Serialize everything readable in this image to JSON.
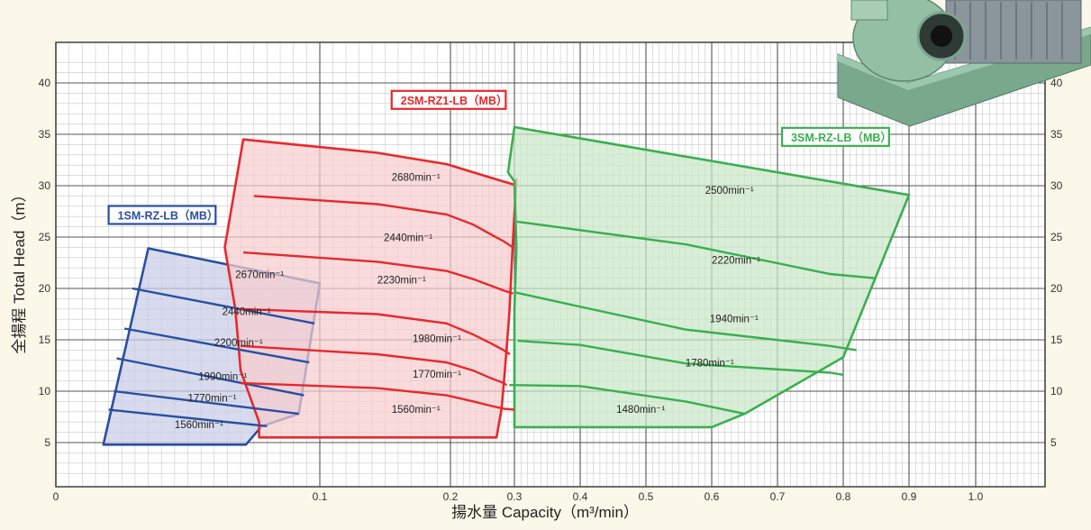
{
  "chart_data": {
    "type": "area",
    "xlabel": "揚水量 Capacity（m³/min）",
    "ylabel": "全揚程 Total Head（m）",
    "x_ticks": [
      "0",
      "0.1",
      "0.2",
      "0.3",
      "0.4",
      "0.5",
      "0.6",
      "0.7",
      "0.8",
      "0.9",
      "1.0"
    ],
    "x_tick_values": [
      0,
      0.1,
      0.2,
      0.3,
      0.4,
      0.5,
      0.6,
      0.7,
      0.8,
      0.9,
      1.0
    ],
    "y_ticks": [
      "5",
      "10",
      "15",
      "20",
      "25",
      "30",
      "35",
      "40"
    ],
    "y_tick_values": [
      5,
      10,
      15,
      20,
      25,
      30,
      35,
      40
    ],
    "ylim": [
      2,
      42
    ],
    "grid": true,
    "series": [
      {
        "name": "1SM-RZ-LB（MB）",
        "color": "#2a4fa0",
        "fill": "#c7cde6",
        "legend_anchor": [
          0.02,
          26.8
        ],
        "outline": [
          [
            0.018,
            4.8
          ],
          [
            0.035,
            23.9
          ],
          [
            0.1,
            20.5
          ],
          [
            0.092,
            7.8
          ],
          [
            0.078,
            6.6
          ],
          [
            0.072,
            4.8
          ]
        ],
        "curves": [
          {
            "label": "2670min⁻¹",
            "points": [
              [
                0.029,
                20.0
              ],
              [
                0.098,
                16.6
              ]
            ]
          },
          {
            "label": "2440min⁻¹",
            "points": [
              [
                0.026,
                16.1
              ],
              [
                0.096,
                12.8
              ]
            ]
          },
          {
            "label": "2200min⁻¹",
            "points": [
              [
                0.023,
                13.2
              ],
              [
                0.094,
                9.6
              ]
            ]
          },
          {
            "label": "1990min⁻¹",
            "points": [
              [
                0.022,
                10.0
              ],
              [
                0.092,
                7.8
              ]
            ]
          },
          {
            "label": "1770min⁻¹",
            "points": [
              [
                0.02,
                8.2
              ],
              [
                0.08,
                6.6
              ]
            ]
          }
        ],
        "speed_labels": [
          {
            "text": "2670min⁻¹",
            "at": [
              0.068,
              21.0
            ]
          },
          {
            "text": "2440min⁻¹",
            "at": [
              0.063,
              17.4
            ]
          },
          {
            "text": "2200min⁻¹",
            "at": [
              0.06,
              14.4
            ]
          },
          {
            "text": "1990min⁻¹",
            "at": [
              0.054,
              11.1
            ]
          },
          {
            "text": "1770min⁻¹",
            "at": [
              0.05,
              9.0
            ]
          },
          {
            "text": "1560min⁻¹",
            "at": [
              0.045,
              6.4
            ]
          }
        ]
      },
      {
        "name": "2SM-RZ1-LB（MB）",
        "color": "#e8282d",
        "fill": "#f7cdcf",
        "legend_anchor": [
          0.155,
          38.0
        ],
        "outline": [
          [
            0.071,
            34.5
          ],
          [
            0.144,
            33.2
          ],
          [
            0.197,
            32.1
          ],
          [
            0.236,
            31.3
          ],
          [
            0.262,
            30.8
          ],
          [
            0.283,
            30.4
          ],
          [
            0.3,
            30.1
          ],
          [
            0.303,
            30.6
          ],
          [
            0.298,
            25.0
          ],
          [
            0.292,
            17.5
          ],
          [
            0.285,
            12.0
          ],
          [
            0.28,
            8.3
          ],
          [
            0.272,
            5.5
          ],
          [
            0.265,
            5.5
          ],
          [
            0.234,
            5.5
          ],
          [
            0.196,
            5.5
          ],
          [
            0.144,
            5.5
          ],
          [
            0.107,
            5.5
          ],
          [
            0.085,
            5.5
          ],
          [
            0.077,
            5.5
          ],
          [
            0.077,
            7.0
          ],
          [
            0.07,
            12.0
          ],
          [
            0.068,
            18.0
          ],
          [
            0.064,
            24.0
          ],
          [
            0.071,
            34.5
          ]
        ],
        "curves": [
          {
            "label": "2440min⁻¹",
            "points": [
              [
                0.075,
                29.0
              ],
              [
                0.144,
                28.2
              ],
              [
                0.197,
                27.2
              ],
              [
                0.236,
                26.2
              ],
              [
                0.262,
                25.3
              ],
              [
                0.283,
                24.6
              ],
              [
                0.3,
                23.9
              ]
            ]
          },
          {
            "label": "2230min⁻¹",
            "points": [
              [
                0.071,
                23.5
              ],
              [
                0.144,
                22.6
              ],
              [
                0.197,
                21.7
              ],
              [
                0.236,
                20.9
              ],
              [
                0.262,
                20.3
              ],
              [
                0.283,
                19.8
              ],
              [
                0.298,
                19.5
              ]
            ]
          },
          {
            "label": "1980min⁻¹",
            "points": [
              [
                0.07,
                18.0
              ],
              [
                0.144,
                17.5
              ],
              [
                0.197,
                16.6
              ],
              [
                0.236,
                15.5
              ],
              [
                0.262,
                14.7
              ],
              [
                0.283,
                14.0
              ],
              [
                0.293,
                13.6
              ]
            ]
          },
          {
            "label": "1770min⁻¹",
            "points": [
              [
                0.07,
                14.4
              ],
              [
                0.144,
                13.6
              ],
              [
                0.197,
                12.8
              ],
              [
                0.236,
                12.0
              ],
              [
                0.262,
                11.3
              ],
              [
                0.283,
                10.8
              ],
              [
                0.288,
                10.6
              ]
            ]
          },
          {
            "label": "1560min⁻¹",
            "points": [
              [
                0.07,
                10.8
              ],
              [
                0.144,
                10.3
              ],
              [
                0.197,
                9.6
              ],
              [
                0.236,
                9.0
              ],
              [
                0.262,
                8.6
              ],
              [
                0.283,
                8.3
              ],
              [
                0.3,
                8.2
              ]
            ]
          }
        ],
        "speed_labels": [
          {
            "text": "2680min⁻¹",
            "at": [
              0.155,
              30.5
            ]
          },
          {
            "text": "2440min⁻¹",
            "at": [
              0.149,
              24.6
            ]
          },
          {
            "text": "2230min⁻¹",
            "at": [
              0.144,
              20.5
            ]
          },
          {
            "text": "1980min⁻¹",
            "at": [
              0.171,
              14.8
            ]
          },
          {
            "text": "1770min⁻¹",
            "at": [
              0.171,
              11.3
            ]
          },
          {
            "text": "1560min⁻¹",
            "at": [
              0.155,
              7.9
            ]
          }
        ]
      },
      {
        "name": "3SM-RZ-LB（MB）",
        "color": "#3aae52",
        "fill": "#c9e8c6",
        "legend_anchor": [
          0.707,
          34.4
        ],
        "outline": [
          [
            0.3,
            35.7
          ],
          [
            0.9,
            29.1
          ],
          [
            0.8,
            13.3
          ],
          [
            0.65,
            7.8
          ],
          [
            0.6,
            6.5
          ],
          [
            0.3,
            6.5
          ],
          [
            0.3,
            10.5
          ],
          [
            0.3,
            18.0
          ],
          [
            0.303,
            24.0
          ],
          [
            0.3,
            30.4
          ],
          [
            0.29,
            31.3
          ],
          [
            0.3,
            35.7
          ]
        ],
        "curves": [
          {
            "label": "2220min⁻¹",
            "points": [
              [
                0.304,
                26.5
              ],
              [
                0.56,
                24.3
              ],
              [
                0.78,
                21.4
              ],
              [
                0.847,
                21.0
              ]
            ]
          },
          {
            "label": "1940min⁻¹",
            "points": [
              [
                0.302,
                19.6
              ],
              [
                0.38,
                18.5
              ],
              [
                0.56,
                16.0
              ],
              [
                0.78,
                14.4
              ],
              [
                0.82,
                14.0
              ]
            ]
          },
          {
            "label": "1780min⁻¹",
            "points": [
              [
                0.305,
                14.9
              ],
              [
                0.4,
                14.5
              ],
              [
                0.56,
                12.7
              ],
              [
                0.78,
                11.8
              ],
              [
                0.8,
                11.6
              ]
            ]
          },
          {
            "label": "1480min⁻¹",
            "points": [
              [
                0.292,
                10.6
              ],
              [
                0.4,
                10.5
              ],
              [
                0.56,
                9.0
              ],
              [
                0.65,
                7.8
              ]
            ]
          }
        ],
        "speed_labels": [
          {
            "text": "2500min⁻¹",
            "at": [
              0.59,
              29.2
            ]
          },
          {
            "text": "2220min⁻¹",
            "at": [
              0.6,
              22.4
            ]
          },
          {
            "text": "1940min⁻¹",
            "at": [
              0.597,
              16.7
            ]
          },
          {
            "text": "1780min⁻¹",
            "at": [
              0.56,
              12.4
            ]
          },
          {
            "text": "1480min⁻¹",
            "at": [
              0.455,
              7.9
            ]
          }
        ]
      }
    ]
  }
}
